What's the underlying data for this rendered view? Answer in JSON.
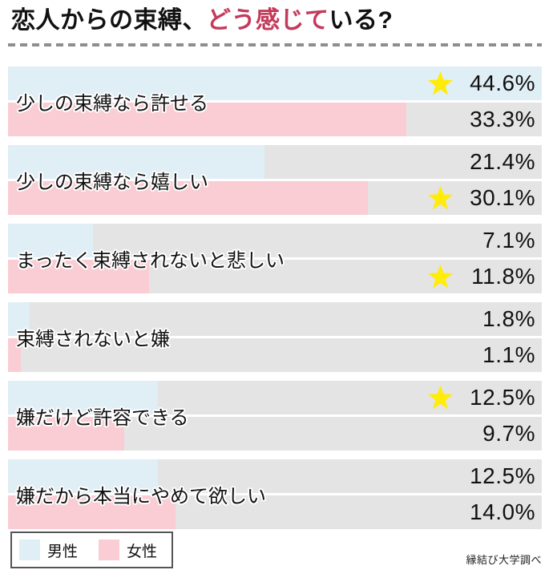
{
  "header": {
    "title_prefix": "恋人からの束縛、",
    "title_accent": "どう感じて",
    "title_suffix": "いる?"
  },
  "chart_data": {
    "type": "bar",
    "orientation": "horizontal",
    "unit": "%",
    "scale_max": 44.6,
    "series": [
      "男性",
      "女性"
    ],
    "groups": [
      {
        "label": "少しの束縛なら許せる",
        "male": {
          "value": 44.6,
          "label": "44.6%",
          "star": true
        },
        "female": {
          "value": 33.3,
          "label": "33.3%",
          "star": false
        }
      },
      {
        "label": "少しの束縛なら嬉しい",
        "male": {
          "value": 21.4,
          "label": "21.4%",
          "star": false
        },
        "female": {
          "value": 30.1,
          "label": "30.1%",
          "star": true
        }
      },
      {
        "label": "まったく束縛されないと悲しい",
        "male": {
          "value": 7.1,
          "label": "7.1%",
          "star": false
        },
        "female": {
          "value": 11.8,
          "label": "11.8%",
          "star": true
        }
      },
      {
        "label": "束縛されないと嫌",
        "male": {
          "value": 1.8,
          "label": "1.8%",
          "star": false
        },
        "female": {
          "value": 1.1,
          "label": "1.1%",
          "star": false
        }
      },
      {
        "label": "嫌だけど許容できる",
        "male": {
          "value": 12.5,
          "label": "12.5%",
          "star": true
        },
        "female": {
          "value": 9.7,
          "label": "9.7%",
          "star": false
        }
      },
      {
        "label": "嫌だから本当にやめて欲しい",
        "male": {
          "value": 12.5,
          "label": "12.5%",
          "star": false
        },
        "female": {
          "value": 14.0,
          "label": "14.0%",
          "star": false
        }
      }
    ]
  },
  "legend": {
    "items": [
      {
        "label": "男性",
        "color": "#e0eef5"
      },
      {
        "label": "女性",
        "color": "#f9cdd3"
      }
    ]
  },
  "footer": {
    "source": "縁結び大学調べ"
  },
  "colors": {
    "accent": "#c43a5b",
    "male": "#e0eef5",
    "female": "#f9cdd3",
    "track": "#e4e4e4",
    "star": "#ffec0a"
  }
}
